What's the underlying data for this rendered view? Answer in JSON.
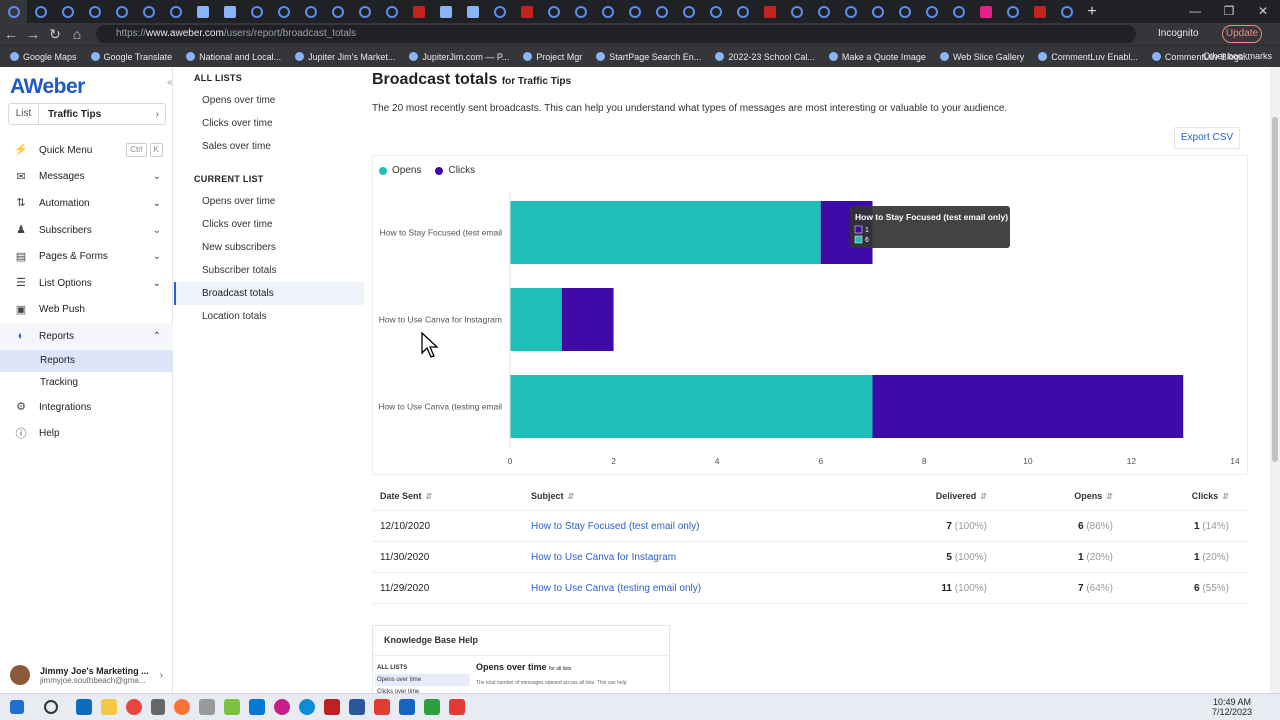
{
  "browser": {
    "url_prefix": "https://",
    "url_domain": "www.aweber.com",
    "url_path": "/users/report/broadcast_totals",
    "incognito_label": "Incognito",
    "update_label": "Update",
    "bookmarks": [
      "Google Maps",
      "Google Translate",
      "National and Local...",
      "Jupiter Jim's Market...",
      "JupiterJim.com — P...",
      "Project Mgr",
      "StartPage Search En...",
      "2022-23 School Cal...",
      "Make a Quote Image",
      "Web Slice Gallery",
      "CommentLuv Enabl...",
      "CommentLuv Blogs..."
    ],
    "other_bookmarks": "Other bookmarks"
  },
  "sidebar": {
    "logo": "AWeber",
    "list_label": "List",
    "list_value": "Traffic Tips",
    "items": [
      {
        "label": "Quick Menu",
        "icon": "lightning-icon"
      },
      {
        "label": "Messages",
        "icon": "envelope-icon"
      },
      {
        "label": "Automation",
        "icon": "automation-icon"
      },
      {
        "label": "Subscribers",
        "icon": "people-icon"
      },
      {
        "label": "Pages & Forms",
        "icon": "pages-icon"
      },
      {
        "label": "List Options",
        "icon": "list-icon"
      },
      {
        "label": "Web Push",
        "icon": "push-icon"
      },
      {
        "label": "Reports",
        "icon": "reports-icon"
      }
    ],
    "shortcut_ctrl": "Ctrl",
    "shortcut_k": "K",
    "reports_sub": [
      "Reports",
      "Tracking"
    ],
    "bottom_items": [
      {
        "label": "Integrations",
        "icon": "integrations-icon"
      },
      {
        "label": "Help",
        "icon": "help-icon"
      }
    ],
    "user_name": "Jimmy Joe's Marketing ...",
    "user_email": "jimmyjoe.southbeach@gma..."
  },
  "secnav": {
    "all_lists_heading": "ALL LISTS",
    "all_lists": [
      "Opens over time",
      "Clicks over time",
      "Sales over time"
    ],
    "current_list_heading": "CURRENT LIST",
    "current_list": [
      "Opens over time",
      "Clicks over time",
      "New subscribers",
      "Subscriber totals",
      "Broadcast totals",
      "Location totals"
    ]
  },
  "main": {
    "title": "Broadcast totals",
    "title_suffix": "for Traffic Tips",
    "description": "The 20 most recently sent broadcasts. This can help you understand what types of messages are most interesting or valuable to your audience.",
    "export_label": "Export CSV",
    "tooltip": {
      "title": "How to Stay Focused (test email only)",
      "clicks": "1",
      "opens": "6"
    }
  },
  "colors": {
    "opens": "#1fbfb8",
    "clicks": "#3e0aa8",
    "link": "#2b5fd0"
  },
  "chart_data": {
    "type": "bar",
    "orientation": "horizontal",
    "stacked": true,
    "categories": [
      "How to Stay Focused (test email",
      "How to Use Canva for Instagram",
      "How to Use Canva (testing email"
    ],
    "series": [
      {
        "name": "Opens",
        "values": [
          6,
          1,
          7
        ]
      },
      {
        "name": "Clicks",
        "values": [
          1,
          1,
          6
        ]
      }
    ],
    "xlim": [
      0,
      14
    ],
    "xticks": [
      0,
      2,
      4,
      6,
      8,
      10,
      12,
      14
    ],
    "legend": "top-left"
  },
  "table": {
    "headers": [
      "Date Sent",
      "Subject",
      "Delivered",
      "Opens",
      "Clicks"
    ],
    "rows": [
      {
        "date": "12/10/2020",
        "subject": "How to Stay Focused (test email only)",
        "delivered": "7",
        "delivered_pct": "(100%)",
        "opens": "6",
        "opens_pct": "(86%)",
        "clicks": "1",
        "clicks_pct": "(14%)"
      },
      {
        "date": "11/30/2020",
        "subject": "How to Use Canva for Instagram",
        "delivered": "5",
        "delivered_pct": "(100%)",
        "opens": "1",
        "opens_pct": "(20%)",
        "clicks": "1",
        "clicks_pct": "(20%)"
      },
      {
        "date": "11/29/2020",
        "subject": "How to Use Canva (testing email only)",
        "delivered": "11",
        "delivered_pct": "(100%)",
        "opens": "7",
        "opens_pct": "(64%)",
        "clicks": "6",
        "clicks_pct": "(55%)"
      }
    ]
  },
  "kb": {
    "title": "Knowledge Base Help",
    "side_heading": "ALL LISTS",
    "side_items": [
      "Opens over time",
      "Clicks over time"
    ],
    "main_title": "Opens over time",
    "main_suffix": "for all lists",
    "main_text": "The total number of messages opened across all lists. This can help"
  },
  "taskbar": {
    "time": "10:49 AM",
    "date": "7/12/2023"
  }
}
